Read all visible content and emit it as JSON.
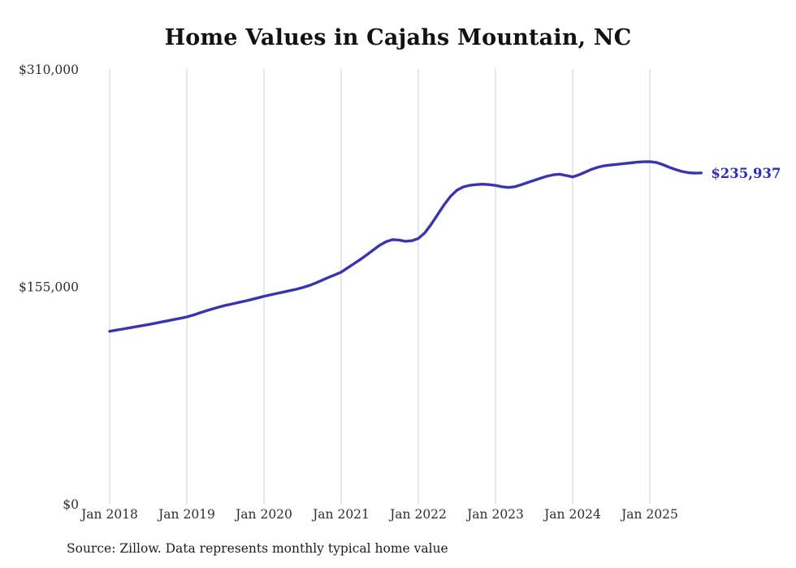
{
  "title": "Home Values in Cajahs Mountain, NC",
  "source_note": "Source: Zillow. Data represents monthly typical home value",
  "end_label": "$235,937",
  "colors": {
    "line": "#3a35ad",
    "end_label": "#2d2db8",
    "grid": "#cfcfcf",
    "text": "#2e2e2e",
    "title": "#121212"
  },
  "chart_data": {
    "type": "line",
    "title": "Home Values in Cajahs Mountain, NC",
    "ylabel": "",
    "xlabel": "",
    "ylim": [
      0,
      310000
    ],
    "y_ticks": [
      0,
      155000,
      310000
    ],
    "y_tick_labels": [
      "$0",
      "$155,000",
      "$310,000"
    ],
    "x_tick_labels": [
      "Jan 2018",
      "Jan 2019",
      "Jan 2020",
      "Jan 2021",
      "Jan 2022",
      "Jan 2023",
      "Jan 2024",
      "Jan 2025"
    ],
    "x_start": "2018-01",
    "x_end": "2025-09",
    "grid": "vertical-only",
    "legend": "none",
    "end_value": 235937,
    "series": [
      {
        "name": "Monthly typical home value",
        "values": [
          123000,
          123800,
          124600,
          125400,
          126200,
          127000,
          127800,
          128700,
          129600,
          130500,
          131400,
          132300,
          133300,
          134600,
          136100,
          137600,
          139000,
          140300,
          141500,
          142500,
          143500,
          144500,
          145600,
          146800,
          148000,
          149000,
          150000,
          151000,
          152000,
          153000,
          154200,
          155600,
          157400,
          159400,
          161400,
          163200,
          165200,
          168200,
          171200,
          174300,
          177600,
          181000,
          184400,
          186900,
          188400,
          188100,
          187200,
          187600,
          189200,
          193200,
          199200,
          206200,
          213200,
          219200,
          223600,
          226000,
          227100,
          227600,
          227900,
          227600,
          227000,
          226100,
          225600,
          226100,
          227500,
          229100,
          230600,
          232100,
          233600,
          234600,
          235000,
          234100,
          233100,
          234600,
          236600,
          238600,
          240100,
          241100,
          241600,
          242100,
          242600,
          243100,
          243600,
          243900,
          244000,
          243400,
          241900,
          240000,
          238400,
          237000,
          236100,
          235800,
          235937
        ]
      }
    ]
  }
}
